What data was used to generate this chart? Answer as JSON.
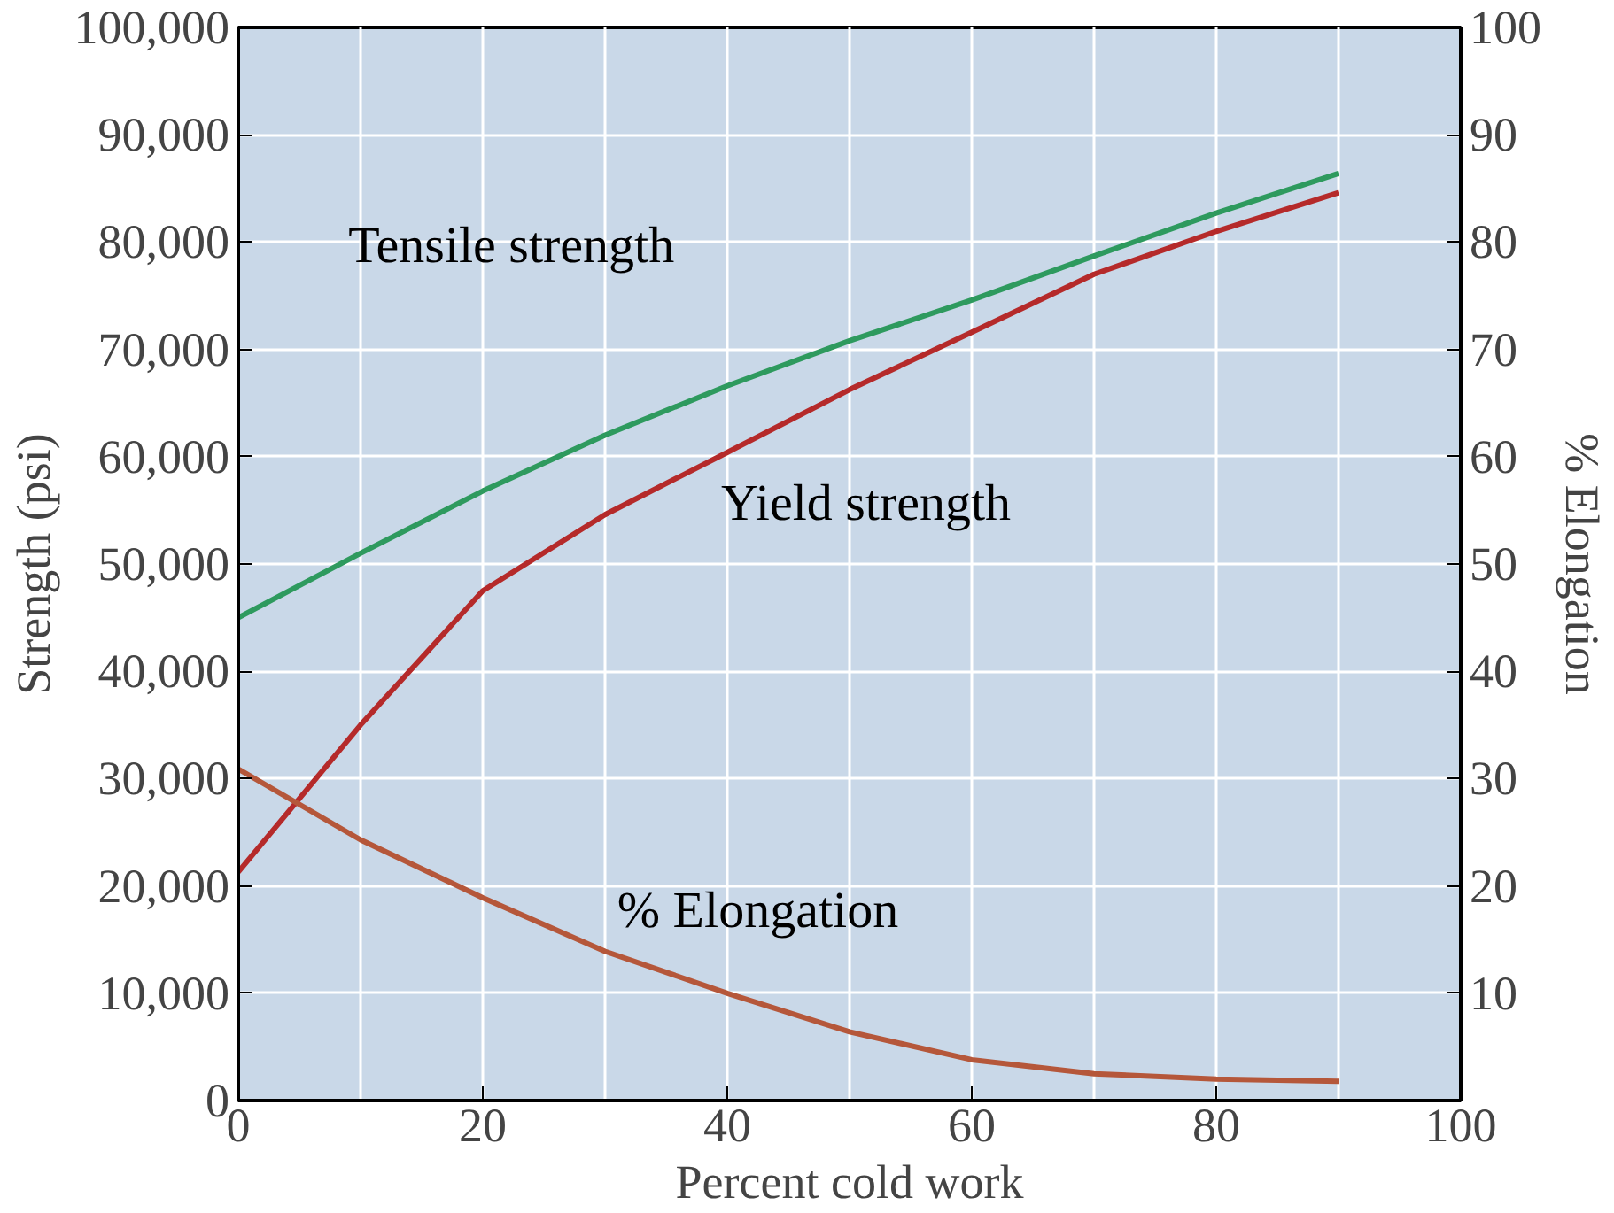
{
  "chart_data": {
    "type": "line",
    "xlabel": "Percent cold work",
    "ylabel": "Strength (psi)",
    "y2label": "% Elongation",
    "xlim": [
      0,
      100
    ],
    "xticks": [
      0,
      20,
      40,
      60,
      80,
      100
    ],
    "ylim": [
      0,
      100000
    ],
    "yticks": [
      {
        "value": 0,
        "label": "0"
      },
      {
        "value": 10000,
        "label": "10,000"
      },
      {
        "value": 20000,
        "label": "20,000"
      },
      {
        "value": 30000,
        "label": "30,000"
      },
      {
        "value": 40000,
        "label": "40,000"
      },
      {
        "value": 50000,
        "label": "50,000"
      },
      {
        "value": 60000,
        "label": "60,000"
      },
      {
        "value": 70000,
        "label": "70,000"
      },
      {
        "value": 80000,
        "label": "80,000"
      },
      {
        "value": 90000,
        "label": "90,000"
      },
      {
        "value": 100000,
        "label": "100,000"
      }
    ],
    "y2lim": [
      0,
      100
    ],
    "y2ticks": [
      10,
      20,
      30,
      40,
      50,
      60,
      70,
      80,
      90,
      100
    ],
    "grid": true,
    "legend": false,
    "x": [
      0,
      10,
      20,
      30,
      40,
      50,
      60,
      70,
      80,
      90
    ],
    "series": [
      {
        "name": "Tensile strength",
        "color": "#2e9a5e",
        "values": [
          45000,
          51000,
          56800,
          62000,
          66600,
          70800,
          74600,
          78700,
          82700,
          86400
        ]
      },
      {
        "name": "Yield strength",
        "color": "#b52a2a",
        "values": [
          21300,
          35000,
          47500,
          54600,
          60400,
          66250,
          71600,
          77000,
          81000,
          84600
        ]
      },
      {
        "name": "% Elongation",
        "color": "#b5573a",
        "axis": "y2",
        "values": [
          30.9,
          24.3,
          18.9,
          13.9,
          10,
          6.4,
          3.8,
          2.5,
          2,
          1.8
        ]
      }
    ]
  }
}
